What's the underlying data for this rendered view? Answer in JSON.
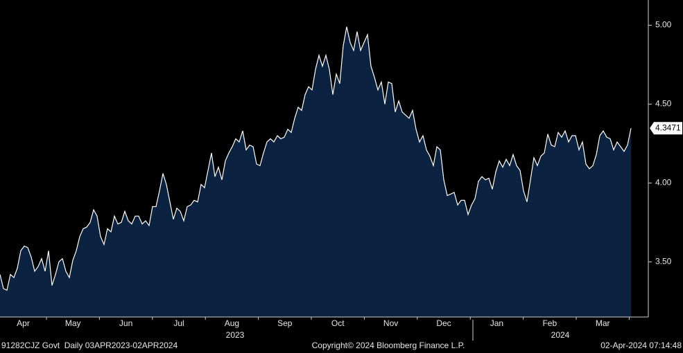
{
  "chart_data": {
    "type": "area",
    "values": [
      3.42,
      3.33,
      3.32,
      3.42,
      3.4,
      3.46,
      3.57,
      3.6,
      3.59,
      3.53,
      3.44,
      3.47,
      3.52,
      3.44,
      3.57,
      3.35,
      3.42,
      3.5,
      3.52,
      3.44,
      3.4,
      3.51,
      3.57,
      3.66,
      3.71,
      3.72,
      3.75,
      3.83,
      3.79,
      3.66,
      3.61,
      3.71,
      3.69,
      3.79,
      3.74,
      3.75,
      3.82,
      3.76,
      3.74,
      3.79,
      3.79,
      3.74,
      3.76,
      3.73,
      3.85,
      3.85,
      3.95,
      4.06,
      3.99,
      3.88,
      3.77,
      3.84,
      3.82,
      3.76,
      3.85,
      3.86,
      3.89,
      3.88,
      3.99,
      3.97,
      4.08,
      4.19,
      4.04,
      4.1,
      4.02,
      4.14,
      4.19,
      4.23,
      4.28,
      4.26,
      4.33,
      4.21,
      4.24,
      4.23,
      4.12,
      4.11,
      4.19,
      4.26,
      4.28,
      4.26,
      4.3,
      4.28,
      4.29,
      4.34,
      4.32,
      4.41,
      4.48,
      4.46,
      4.56,
      4.61,
      4.59,
      4.72,
      4.81,
      4.74,
      4.81,
      4.72,
      4.56,
      4.69,
      4.63,
      4.87,
      4.99,
      4.89,
      4.84,
      4.96,
      4.84,
      4.89,
      4.94,
      4.74,
      4.67,
      4.59,
      4.64,
      4.5,
      4.64,
      4.63,
      4.45,
      4.52,
      4.45,
      4.43,
      4.41,
      4.46,
      4.34,
      4.26,
      4.3,
      4.21,
      4.17,
      4.11,
      4.23,
      4.21,
      4.02,
      3.92,
      3.93,
      3.94,
      3.86,
      3.89,
      3.89,
      3.8,
      3.86,
      3.9,
      4.01,
      4.04,
      4.02,
      4.03,
      3.96,
      4.07,
      4.14,
      4.1,
      4.15,
      4.11,
      4.18,
      4.11,
      4.08,
      3.95,
      3.88,
      4.02,
      4.16,
      4.11,
      4.17,
      4.19,
      4.31,
      4.24,
      4.23,
      4.32,
      4.29,
      4.33,
      4.26,
      4.3,
      4.3,
      4.21,
      4.26,
      4.12,
      4.09,
      4.11,
      4.18,
      4.3,
      4.33,
      4.29,
      4.28,
      4.21,
      4.26,
      4.23,
      4.2,
      4.24,
      4.3471
    ],
    "color": "#0b2240",
    "line_color": "#ffffff",
    "ylim": [
      3.15,
      5.16
    ],
    "yticks": [
      {
        "value": 3.5,
        "label": "3.50"
      },
      {
        "value": 4,
        "label": "4.00"
      },
      {
        "value": 4.5,
        "label": "4.50"
      },
      {
        "value": 5,
        "label": "5.00"
      }
    ],
    "x_labels": [
      "Apr",
      "May",
      "Jun",
      "Jul",
      "Aug",
      "Sep",
      "Oct",
      "Nov",
      "Dec",
      "Jan",
      "Feb",
      "Mar"
    ],
    "year_labels": [
      "2023",
      "2024"
    ],
    "footer_left": "91282CJZ Govt  Daily 03APR2023-02APR2024",
    "footer_center": "Copyright© 2024 Bloomberg Finance L.P.",
    "footer_right": "02-Apr-2024 07:14:48"
  }
}
